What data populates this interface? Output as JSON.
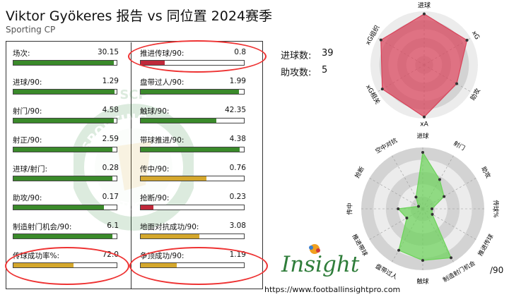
{
  "title": "Viktor Gyökeres 报告 vs 同位置 2024赛季",
  "subtitle": "Sporting CP",
  "crest_text": [
    "SPORTING",
    "PORTUGAL",
    "SCP"
  ],
  "stats_left": [
    {
      "label": "场次:",
      "value": "30.15",
      "fill": 0.97,
      "color": "#3a8a2a"
    },
    {
      "label": "进球/90:",
      "value": "1.29",
      "fill": 0.98,
      "color": "#3a8a2a"
    },
    {
      "label": "射门/90:",
      "value": "4.58",
      "fill": 0.97,
      "color": "#3a8a2a"
    },
    {
      "label": "射正/90:",
      "value": "2.59",
      "fill": 0.96,
      "color": "#3a8a2a"
    },
    {
      "label": "进球/射门:",
      "value": "0.28",
      "fill": 0.96,
      "color": "#3a8a2a"
    },
    {
      "label": "助攻/90:",
      "value": "0.17",
      "fill": 0.88,
      "color": "#3a8a2a"
    },
    {
      "label": "制造射门机会/90:",
      "value": "6.1",
      "fill": 0.96,
      "color": "#3a8a2a"
    },
    {
      "label": "传球成功率%:",
      "value": "72.0",
      "fill": 0.58,
      "color": "#d4a72c"
    }
  ],
  "stats_right": [
    {
      "label": "推进传球/90:",
      "value": "0.8",
      "fill": 0.23,
      "color": "#c0283a"
    },
    {
      "label": "盘带过人/90:",
      "value": "1.99",
      "fill": 0.95,
      "color": "#3a8a2a"
    },
    {
      "label": "触球/90:",
      "value": "42.35",
      "fill": 0.73,
      "color": "#3a8a2a"
    },
    {
      "label": "带球推进/90:",
      "value": "4.38",
      "fill": 0.96,
      "color": "#3a8a2a"
    },
    {
      "label": "传中/90:",
      "value": "0.76",
      "fill": 0.64,
      "color": "#d4a72c"
    },
    {
      "label": "抢断/90:",
      "value": "0.23",
      "fill": 0.12,
      "color": "#c0283a"
    },
    {
      "label": "地面对抗成功/90:",
      "value": "3.08",
      "fill": 0.57,
      "color": "#d4a72c"
    },
    {
      "label": "争顶成功/90:",
      "value": "1.19",
      "fill": 0.35,
      "color": "#d4a72c"
    }
  ],
  "summary": {
    "goals_label": "进球数:",
    "goals": "39",
    "assists_label": "助攻数:",
    "assists": "5"
  },
  "brand": {
    "name": "Insight",
    "url": "https://www.footballinsightpro.com",
    "per90": "/90"
  },
  "chart_data": [
    {
      "type": "radar",
      "axes": [
        "进球",
        "xG",
        "助攻",
        "xA",
        "xG相关",
        "xG组织"
      ],
      "values": [
        0.95,
        0.92,
        0.7,
        0.97,
        0.9,
        0.93
      ],
      "color": "#d9435a"
    },
    {
      "type": "radar",
      "axes": [
        "进球",
        "射门",
        "助攻",
        "传球%",
        "推进传球",
        "制造射门机会",
        "触球",
        "盘带过人",
        "推进带球",
        "传中",
        "抢断",
        "空中对抗"
      ],
      "values": [
        0.92,
        0.55,
        0.4,
        0.15,
        0.18,
        0.92,
        0.84,
        0.78,
        0.3,
        0.4,
        0.08,
        0.22
      ],
      "color": "#6cd35a"
    }
  ]
}
